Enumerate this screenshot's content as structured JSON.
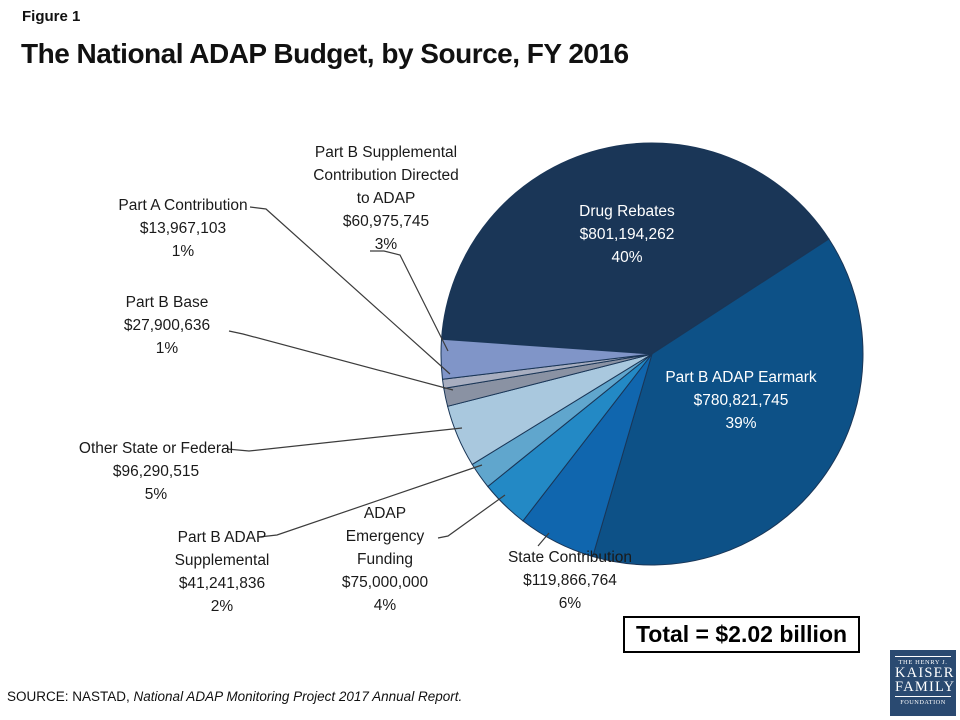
{
  "header": {
    "figure_label": "Figure 1",
    "title": "The National ADAP Budget, by Source, FY 2016"
  },
  "chart_data": {
    "type": "pie",
    "title": "The National ADAP Budget, by Source, FY 2016",
    "total_display": "Total = $2.02 billion",
    "start_angle_deg": 274,
    "legend_position": "none",
    "slices": [
      {
        "name": "Drug Rebates",
        "lines": [
          "Drug Rebates"
        ],
        "amount": "$801,194,262",
        "percent": "40%",
        "value": 801194262,
        "color": "#1A3657",
        "label_placement": "inside"
      },
      {
        "name": "Part B ADAP Earmark",
        "lines": [
          "Part B ADAP Earmark"
        ],
        "amount": "$780,821,745",
        "percent": "39%",
        "value": 780821745,
        "color": "#0D5187",
        "label_placement": "inside"
      },
      {
        "name": "State Contribution",
        "lines": [
          "State Contribution"
        ],
        "amount": "$119,866,764",
        "percent": "6%",
        "value": 119866764,
        "color": "#1066AE",
        "label_placement": "outside"
      },
      {
        "name": "ADAP Emergency Funding",
        "lines": [
          "ADAP",
          "Emergency",
          "Funding"
        ],
        "amount": "$75,000,000",
        "percent": "4%",
        "value": 75000000,
        "color": "#2389C5",
        "label_placement": "outside"
      },
      {
        "name": "Part B ADAP Supplemental",
        "lines": [
          "Part B ADAP",
          "Supplemental"
        ],
        "amount": "$41,241,836",
        "percent": "2%",
        "value": 41241836,
        "color": "#60A6CD",
        "label_placement": "outside"
      },
      {
        "name": "Other State or Federal",
        "lines": [
          "Other State or Federal"
        ],
        "amount": "$96,290,515",
        "percent": "5%",
        "value": 96290515,
        "color": "#A9C8DE",
        "label_placement": "outside"
      },
      {
        "name": "Part B Base",
        "lines": [
          "Part B Base"
        ],
        "amount": "$27,900,636",
        "percent": "1%",
        "value": 27900636,
        "color": "#8A92A3",
        "label_placement": "outside"
      },
      {
        "name": "Part A Contribution",
        "lines": [
          "Part A Contribution"
        ],
        "amount": "$13,967,103",
        "percent": "1%",
        "value": 13967103,
        "color": "#A8AEC0",
        "label_placement": "outside"
      },
      {
        "name": "Part B Supplemental Contribution Directed to ADAP",
        "lines": [
          "Part B Supplemental",
          "Contribution Directed",
          "to ADAP"
        ],
        "amount": "$60,975,745",
        "percent": "3%",
        "value": 60975745,
        "color": "#8095C8",
        "label_placement": "outside"
      }
    ]
  },
  "footer": {
    "source_prefix": "SOURCE: NASTAD,",
    "source_citation": "National ADAP Monitoring Project 2017 Annual Report."
  },
  "logo": {
    "line1": "THE HENRY J.",
    "line2": "KAISER",
    "line3": "FAMILY",
    "line4": "FOUNDATION"
  }
}
